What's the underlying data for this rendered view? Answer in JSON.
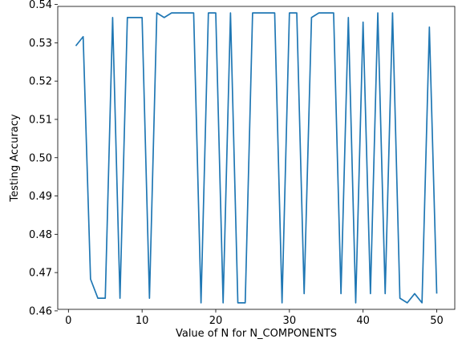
{
  "chart_data": {
    "type": "line",
    "xlabel": "Value of N for N_COMPONENTS",
    "ylabel": "Testing Accuracy",
    "xlim": [
      -1.45,
      52.45
    ],
    "ylim": [
      0.4604,
      0.5395
    ],
    "xticks": [
      0,
      10,
      20,
      30,
      40,
      50
    ],
    "yticks": [
      0.46,
      0.47,
      0.48,
      0.49,
      0.5,
      0.51,
      0.52,
      0.53,
      0.54
    ],
    "ytick_labels": [
      "0.46",
      "0.47",
      "0.48",
      "0.49",
      "0.50",
      "0.51",
      "0.52",
      "0.53",
      "0.54"
    ],
    "grid": false,
    "color": "#1f77b4",
    "series": [
      {
        "x": [
          1,
          2,
          3,
          4,
          5,
          6,
          7,
          8,
          9,
          10,
          11,
          12,
          13,
          14,
          15,
          16,
          17,
          18,
          19,
          20,
          21,
          22,
          23,
          24,
          25,
          26,
          27,
          28,
          29,
          30,
          31,
          32,
          33,
          34,
          35,
          36,
          37,
          38,
          39,
          40,
          41,
          42,
          43,
          44,
          45,
          46,
          47,
          48,
          49,
          50
        ],
        "y": [
          0.5292,
          0.5316,
          0.4683,
          0.4633,
          0.4633,
          0.5366,
          0.4633,
          0.5366,
          0.5366,
          0.5366,
          0.4633,
          0.5378,
          0.5366,
          0.5378,
          0.5378,
          0.5378,
          0.5378,
          0.4621,
          0.5378,
          0.5378,
          0.4621,
          0.5378,
          0.4621,
          0.4621,
          0.5378,
          0.5378,
          0.5378,
          0.5378,
          0.4621,
          0.5378,
          0.5378,
          0.4645,
          0.5366,
          0.5378,
          0.5378,
          0.5378,
          0.4645,
          0.5366,
          0.4621,
          0.5354,
          0.4645,
          0.5378,
          0.4645,
          0.5378,
          0.4633,
          0.4621,
          0.4645,
          0.4621,
          0.5341,
          0.4645
        ]
      }
    ]
  }
}
